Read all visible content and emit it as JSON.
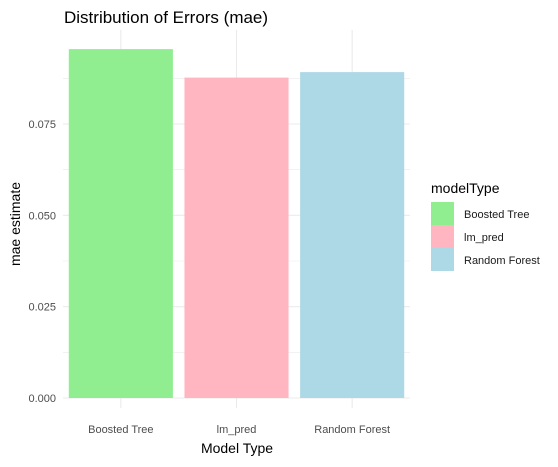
{
  "chart_data": {
    "type": "bar",
    "title": "Distribution of Errors (mae)",
    "xlabel": "Model Type",
    "ylabel": "mae estimate",
    "categories": [
      "Boosted Tree",
      "lm_pred",
      "Random Forest"
    ],
    "values": [
      0.0955,
      0.0877,
      0.0892
    ],
    "ylim": [
      0,
      0.098
    ],
    "yticks": [
      0.0,
      0.025,
      0.05,
      0.075
    ],
    "ytick_labels": [
      "0.000",
      "0.025",
      "0.050",
      "0.075"
    ],
    "grid": true,
    "legend": {
      "title": "modelType",
      "position": "right",
      "entries": [
        "Boosted Tree",
        "lm_pred",
        "Random Forest"
      ]
    },
    "colors": [
      "#90ee90",
      "#ffb6c1",
      "#add8e6"
    ],
    "grid_color": "#ebebeb",
    "text_color": "#1a1a1a",
    "tick_color": "#4d4d4d"
  }
}
